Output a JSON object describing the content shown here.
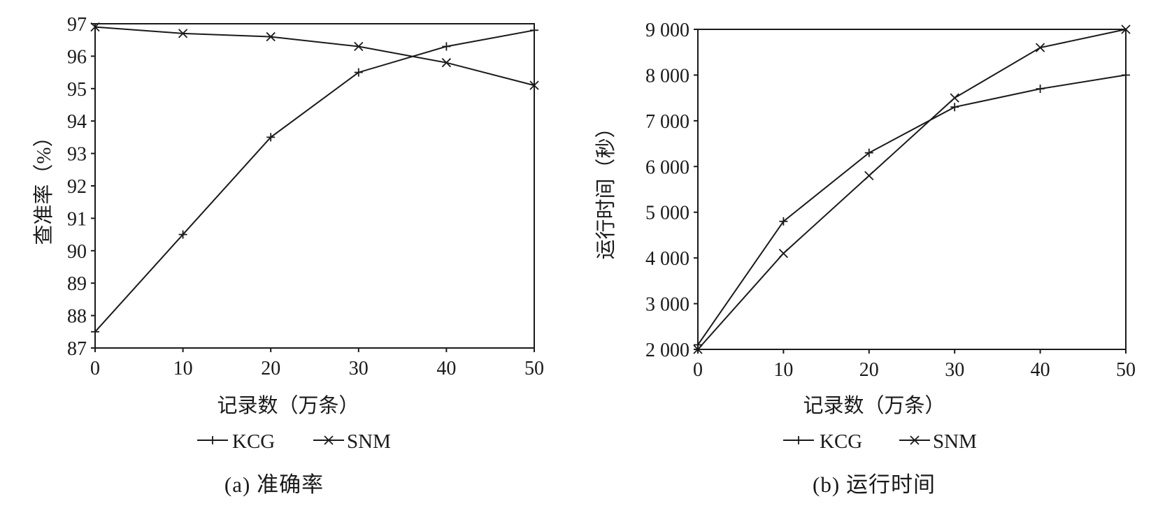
{
  "chart_data": [
    {
      "type": "line",
      "title": "",
      "caption": "(a) 准确率",
      "xlabel": "记录数（万条）",
      "ylabel": "查准率（%）",
      "x": [
        0,
        10,
        20,
        30,
        40,
        50
      ],
      "xlim": [
        0,
        50
      ],
      "ylim": [
        87,
        97
      ],
      "yticks": [
        87,
        88,
        89,
        90,
        91,
        92,
        93,
        94,
        95,
        96,
        97
      ],
      "ytick_labels": [
        "87",
        "88",
        "89",
        "90",
        "91",
        "92",
        "93",
        "94",
        "95",
        "96",
        "97"
      ],
      "xtick_labels": [
        "0",
        "10",
        "20",
        "30",
        "40",
        "50"
      ],
      "grid": false,
      "legend": "bottom",
      "series": [
        {
          "name": "KCG",
          "marker": "plus",
          "values": [
            87.5,
            90.5,
            93.5,
            95.5,
            96.3,
            96.8
          ]
        },
        {
          "name": "SNM",
          "marker": "x",
          "values": [
            96.9,
            96.7,
            96.6,
            96.3,
            95.8,
            95.1
          ]
        }
      ]
    },
    {
      "type": "line",
      "title": "",
      "caption": "(b) 运行时间",
      "xlabel": "记录数（万条）",
      "ylabel": "运行时间（秒）",
      "x": [
        0,
        10,
        20,
        30,
        40,
        50
      ],
      "xlim": [
        0,
        50
      ],
      "ylim": [
        2000,
        9000
      ],
      "yticks": [
        2000,
        3000,
        4000,
        5000,
        6000,
        7000,
        8000,
        9000
      ],
      "ytick_labels": [
        "2 000",
        "3 000",
        "4 000",
        "5 000",
        "6 000",
        "7 000",
        "8 000",
        "9 000"
      ],
      "xtick_labels": [
        "0",
        "10",
        "20",
        "30",
        "40",
        "50"
      ],
      "grid": false,
      "legend": "bottom",
      "series": [
        {
          "name": "KCG",
          "marker": "plus",
          "values": [
            2100,
            4800,
            6300,
            7300,
            7700,
            8000
          ]
        },
        {
          "name": "SNM",
          "marker": "x",
          "values": [
            2000,
            4100,
            5800,
            7500,
            8600,
            9000
          ]
        }
      ]
    }
  ]
}
